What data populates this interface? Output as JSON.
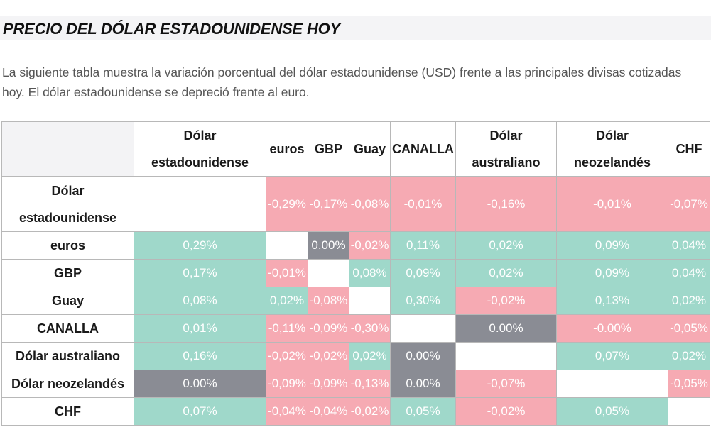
{
  "heading": "PRECIO DEL DÓLAR ESTADOUNIDENSE HOY",
  "intro": "La siguiente tabla muestra la variación porcentual del dólar estadounidense (USD) frente a las principales divisas cotizadas hoy. El dólar estadounidense se depreció frente al euro.",
  "colors": {
    "positive": "#9fd8ca",
    "negative": "#f6aab3",
    "neutral": "#8a8c94",
    "empty": "#ffffff",
    "heading_bg": "#f4f4f6"
  },
  "table": {
    "corner": "",
    "columns": [
      "Dólar estadounidense",
      "euros",
      "GBP",
      "Guay",
      "CANALLA",
      "Dólar australiano",
      "Dólar neozelandés",
      "CHF"
    ],
    "rows": [
      {
        "label": "Dólar estadounidense",
        "cells": [
          {
            "v": "",
            "t": "empty"
          },
          {
            "v": "-0,29%",
            "t": "neg"
          },
          {
            "v": "-0,17%",
            "t": "neg"
          },
          {
            "v": "-0,08%",
            "t": "neg"
          },
          {
            "v": "-0,01%",
            "t": "neg"
          },
          {
            "v": "-0,16%",
            "t": "neg"
          },
          {
            "v": "-0,01%",
            "t": "neg"
          },
          {
            "v": "-0,07%",
            "t": "neg"
          }
        ]
      },
      {
        "label": "euros",
        "cells": [
          {
            "v": "0,29%",
            "t": "pos"
          },
          {
            "v": "",
            "t": "empty"
          },
          {
            "v": "0.00%",
            "t": "neu"
          },
          {
            "v": "-0,02%",
            "t": "neg"
          },
          {
            "v": "0,11%",
            "t": "pos"
          },
          {
            "v": "0,02%",
            "t": "pos"
          },
          {
            "v": "0,09%",
            "t": "pos"
          },
          {
            "v": "0,04%",
            "t": "pos"
          }
        ]
      },
      {
        "label": "GBP",
        "cells": [
          {
            "v": "0,17%",
            "t": "pos"
          },
          {
            "v": "-0,01%",
            "t": "neg"
          },
          {
            "v": "",
            "t": "empty"
          },
          {
            "v": "0,08%",
            "t": "pos"
          },
          {
            "v": "0,09%",
            "t": "pos"
          },
          {
            "v": "0,02%",
            "t": "pos"
          },
          {
            "v": "0,09%",
            "t": "pos"
          },
          {
            "v": "0,04%",
            "t": "pos"
          }
        ]
      },
      {
        "label": "Guay",
        "cells": [
          {
            "v": "0,08%",
            "t": "pos"
          },
          {
            "v": "0,02%",
            "t": "pos"
          },
          {
            "v": "-0,08%",
            "t": "neg"
          },
          {
            "v": "",
            "t": "empty"
          },
          {
            "v": "0,30%",
            "t": "pos"
          },
          {
            "v": "-0,02%",
            "t": "neg"
          },
          {
            "v": "0,13%",
            "t": "pos"
          },
          {
            "v": "0,02%",
            "t": "pos"
          }
        ]
      },
      {
        "label": "CANALLA",
        "cells": [
          {
            "v": "0,01%",
            "t": "pos"
          },
          {
            "v": "-0,11%",
            "t": "neg"
          },
          {
            "v": "-0,09%",
            "t": "neg"
          },
          {
            "v": "-0,30%",
            "t": "neg"
          },
          {
            "v": "",
            "t": "empty"
          },
          {
            "v": "0.00%",
            "t": "neu"
          },
          {
            "v": "-0.00%",
            "t": "neg"
          },
          {
            "v": "-0,05%",
            "t": "neg"
          }
        ]
      },
      {
        "label": "Dólar australiano",
        "cells": [
          {
            "v": "0,16%",
            "t": "pos"
          },
          {
            "v": "-0,02%",
            "t": "neg"
          },
          {
            "v": "-0,02%",
            "t": "neg"
          },
          {
            "v": "0,02%",
            "t": "pos"
          },
          {
            "v": "0.00%",
            "t": "neu"
          },
          {
            "v": "",
            "t": "empty"
          },
          {
            "v": "0,07%",
            "t": "pos"
          },
          {
            "v": "0,02%",
            "t": "pos"
          }
        ]
      },
      {
        "label": "Dólar neozelandés",
        "cells": [
          {
            "v": "0.00%",
            "t": "neu"
          },
          {
            "v": "-0,09%",
            "t": "neg"
          },
          {
            "v": "-0,09%",
            "t": "neg"
          },
          {
            "v": "-0,13%",
            "t": "neg"
          },
          {
            "v": "0.00%",
            "t": "neu"
          },
          {
            "v": "-0,07%",
            "t": "neg"
          },
          {
            "v": "",
            "t": "empty"
          },
          {
            "v": "-0,05%",
            "t": "neg"
          }
        ]
      },
      {
        "label": "CHF",
        "cells": [
          {
            "v": "0,07%",
            "t": "pos"
          },
          {
            "v": "-0,04%",
            "t": "neg"
          },
          {
            "v": "-0,04%",
            "t": "neg"
          },
          {
            "v": "-0,02%",
            "t": "neg"
          },
          {
            "v": "0,05%",
            "t": "pos"
          },
          {
            "v": "-0,02%",
            "t": "neg"
          },
          {
            "v": "0,05%",
            "t": "pos"
          },
          {
            "v": "",
            "t": "empty"
          }
        ]
      }
    ]
  }
}
